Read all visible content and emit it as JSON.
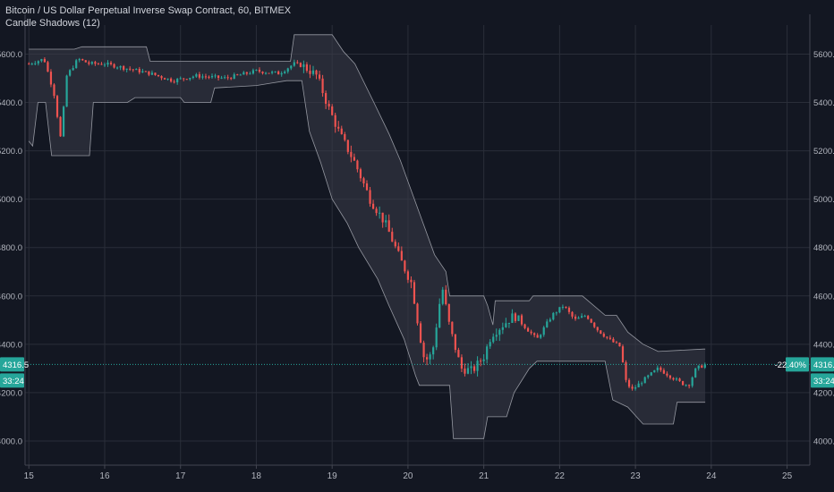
{
  "header": {
    "title": "Bitcoin / US Dollar Perpetual Inverse Swap Contract, 60, BITMEX",
    "indicator": "Candle Shadows (12)"
  },
  "colors": {
    "background": "#131722",
    "grid": "#2a2e39",
    "up": "#26a69a",
    "down": "#ef5350",
    "band_fill": "#3a3d48",
    "band_line": "#9598a1",
    "price_line": "#26a69a",
    "axis_text": "#b2b5be",
    "label_bg": "#26a69a"
  },
  "price_label": {
    "value": "4316.5",
    "change": "-22.40%",
    "countdown": "33:24"
  },
  "chart_data": {
    "type": "candlestick",
    "xlabel": "",
    "ylabel": "",
    "x_ticks": [
      "15",
      "16",
      "17",
      "18",
      "19",
      "20",
      "21",
      "22",
      "23",
      "24",
      "25"
    ],
    "y_ticks": [
      "4000.0",
      "4200.0",
      "4400.0",
      "4600.0",
      "4800.0",
      "5000.0",
      "5200.0",
      "5400.0",
      "5600.0"
    ],
    "ylim": [
      3900,
      5720
    ],
    "xlim": [
      14.95,
      25.3
    ],
    "last_price": 4316.5,
    "grid": true,
    "close_path": [
      [
        15.0,
        5560
      ],
      [
        15.2,
        5580
      ],
      [
        15.33,
        5440
      ],
      [
        15.42,
        5250
      ],
      [
        15.5,
        5510
      ],
      [
        15.65,
        5580
      ],
      [
        15.8,
        5560
      ],
      [
        16.0,
        5560
      ],
      [
        16.3,
        5540
      ],
      [
        16.6,
        5520
      ],
      [
        16.9,
        5490
      ],
      [
        17.2,
        5510
      ],
      [
        17.6,
        5500
      ],
      [
        18.0,
        5530
      ],
      [
        18.3,
        5520
      ],
      [
        18.5,
        5560
      ],
      [
        18.62,
        5550
      ],
      [
        18.8,
        5510
      ],
      [
        18.95,
        5380
      ],
      [
        19.1,
        5270
      ],
      [
        19.3,
        5150
      ],
      [
        19.5,
        5000
      ],
      [
        19.7,
        4900
      ],
      [
        19.9,
        4750
      ],
      [
        20.05,
        4650
      ],
      [
        20.15,
        4450
      ],
      [
        20.22,
        4330
      ],
      [
        20.32,
        4360
      ],
      [
        20.45,
        4640
      ],
      [
        20.55,
        4470
      ],
      [
        20.7,
        4300
      ],
      [
        20.85,
        4290
      ],
      [
        21.0,
        4350
      ],
      [
        21.1,
        4440
      ],
      [
        21.25,
        4480
      ],
      [
        21.4,
        4520
      ],
      [
        21.55,
        4470
      ],
      [
        21.7,
        4420
      ],
      [
        21.9,
        4520
      ],
      [
        22.05,
        4560
      ],
      [
        22.2,
        4500
      ],
      [
        22.35,
        4520
      ],
      [
        22.5,
        4460
      ],
      [
        22.65,
        4420
      ],
      [
        22.8,
        4390
      ],
      [
        22.87,
        4250
      ],
      [
        22.95,
        4210
      ],
      [
        23.1,
        4250
      ],
      [
        23.3,
        4300
      ],
      [
        23.45,
        4270
      ],
      [
        23.6,
        4240
      ],
      [
        23.7,
        4230
      ],
      [
        23.8,
        4300
      ],
      [
        23.92,
        4316
      ]
    ],
    "band_upper": [
      [
        15.0,
        5620
      ],
      [
        15.6,
        5620
      ],
      [
        15.7,
        5630
      ],
      [
        16.55,
        5630
      ],
      [
        16.6,
        5570
      ],
      [
        18.45,
        5570
      ],
      [
        18.5,
        5680
      ],
      [
        18.55,
        5680
      ],
      [
        18.62,
        5680
      ],
      [
        19.0,
        5680
      ],
      [
        19.15,
        5610
      ],
      [
        19.3,
        5560
      ],
      [
        19.55,
        5400
      ],
      [
        19.75,
        5270
      ],
      [
        19.9,
        5160
      ],
      [
        20.05,
        5030
      ],
      [
        20.2,
        4900
      ],
      [
        20.35,
        4770
      ],
      [
        20.5,
        4700
      ],
      [
        20.55,
        4600
      ],
      [
        21.0,
        4600
      ],
      [
        21.05,
        4560
      ],
      [
        21.12,
        4480
      ],
      [
        21.15,
        4580
      ],
      [
        21.6,
        4580
      ],
      [
        21.65,
        4600
      ],
      [
        22.3,
        4600
      ],
      [
        22.6,
        4520
      ],
      [
        22.75,
        4520
      ],
      [
        22.9,
        4450
      ],
      [
        23.1,
        4400
      ],
      [
        23.3,
        4370
      ],
      [
        23.9,
        4380
      ],
      [
        23.92,
        4380
      ]
    ],
    "band_lower": [
      [
        15.0,
        5240
      ],
      [
        15.05,
        5220
      ],
      [
        15.12,
        5400
      ],
      [
        15.22,
        5400
      ],
      [
        15.3,
        5180
      ],
      [
        15.8,
        5180
      ],
      [
        15.85,
        5400
      ],
      [
        16.3,
        5400
      ],
      [
        16.4,
        5420
      ],
      [
        17.0,
        5420
      ],
      [
        17.05,
        5400
      ],
      [
        17.4,
        5400
      ],
      [
        17.45,
        5460
      ],
      [
        18.0,
        5470
      ],
      [
        18.2,
        5480
      ],
      [
        18.4,
        5490
      ],
      [
        18.6,
        5490
      ],
      [
        18.7,
        5280
      ],
      [
        18.85,
        5150
      ],
      [
        19.0,
        5000
      ],
      [
        19.2,
        4900
      ],
      [
        19.35,
        4800
      ],
      [
        19.6,
        4670
      ],
      [
        19.75,
        4560
      ],
      [
        19.95,
        4420
      ],
      [
        20.1,
        4270
      ],
      [
        20.15,
        4230
      ],
      [
        20.55,
        4230
      ],
      [
        20.6,
        4010
      ],
      [
        21.0,
        4010
      ],
      [
        21.05,
        4100
      ],
      [
        21.3,
        4100
      ],
      [
        21.4,
        4200
      ],
      [
        21.6,
        4300
      ],
      [
        21.7,
        4330
      ],
      [
        22.15,
        4330
      ],
      [
        22.2,
        4330
      ],
      [
        22.6,
        4330
      ],
      [
        22.7,
        4170
      ],
      [
        22.9,
        4140
      ],
      [
        23.1,
        4070
      ],
      [
        23.5,
        4070
      ],
      [
        23.55,
        4160
      ],
      [
        23.92,
        4160
      ]
    ]
  }
}
